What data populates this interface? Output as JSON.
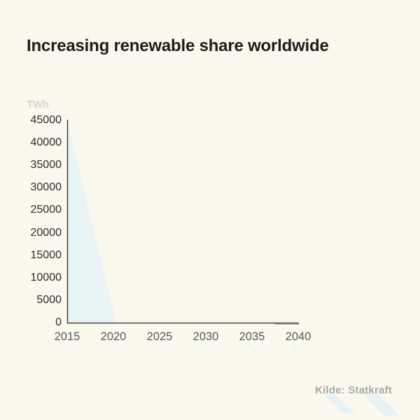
{
  "title": "Increasing renewable share worldwide",
  "source": "Kilde: Statkraft",
  "colors": {
    "background": "#FBF9EE",
    "title_text": "#1D1D1B",
    "axis_line": "#45453F",
    "y_tick_text": "#2B2B28",
    "x_tick_text": "#58585A",
    "unit_label_text": "#C9C9C4",
    "area_fill": "#E9F4F7",
    "zero_line": "#9D9D99",
    "source_text": "#A9A9A4",
    "watermark": "#E7F2F7",
    "watermark_faint": "#F1F7F9"
  },
  "chart_data": {
    "type": "area",
    "title": "Increasing renewable share worldwide",
    "xlabel": "",
    "ylabel": "TWh",
    "xlim": [
      2015,
      2040
    ],
    "ylim": [
      0,
      45000
    ],
    "x_ticks": [
      2015,
      2020,
      2025,
      2030,
      2035,
      2040
    ],
    "y_ticks": [
      0,
      5000,
      10000,
      15000,
      20000,
      25000,
      30000,
      35000,
      40000,
      45000
    ],
    "grid": false,
    "legend": false,
    "series": [
      {
        "name": "renewable-area-wedge",
        "type": "area",
        "x": [
          2015,
          2020.3
        ],
        "values": [
          45000,
          0
        ]
      },
      {
        "name": "baseline-zero-segment",
        "type": "line",
        "x": [
          2037.5,
          2040
        ],
        "values": [
          0,
          0
        ]
      }
    ],
    "annotations": [
      "Kilde: Statkraft"
    ]
  }
}
